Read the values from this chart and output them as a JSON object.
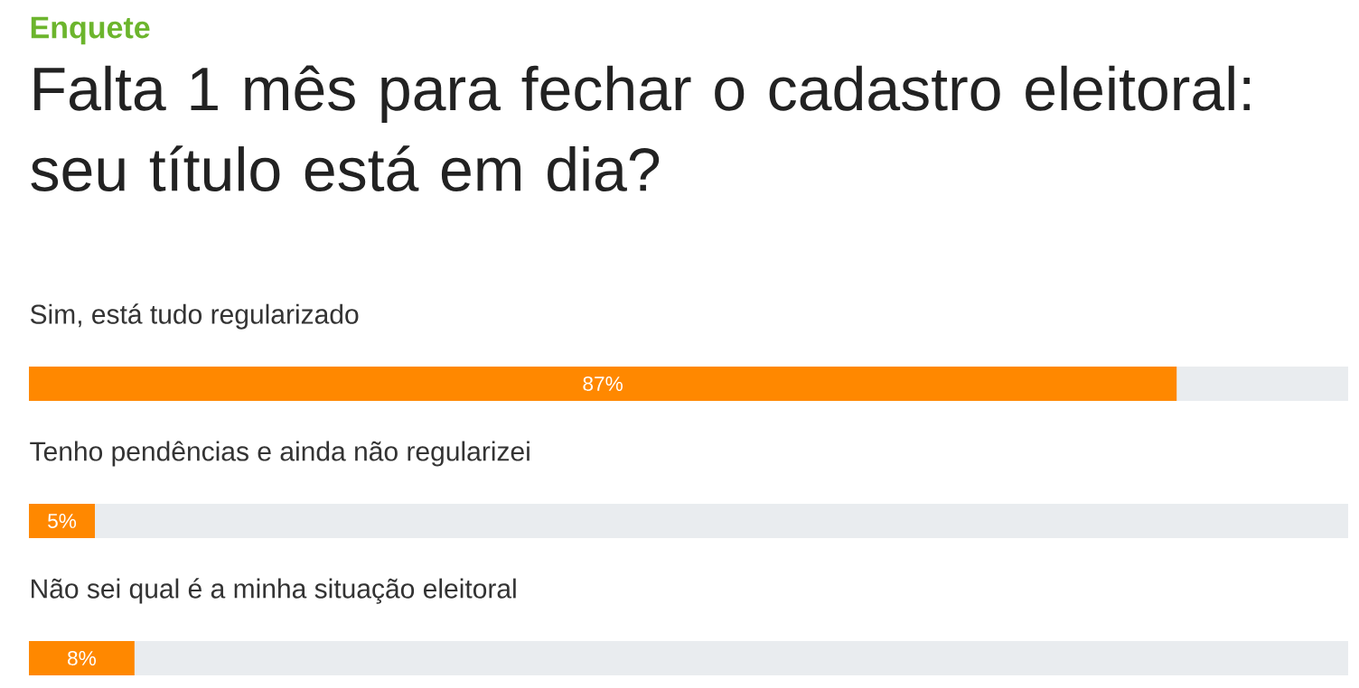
{
  "chart_data": {
    "type": "bar",
    "orientation": "horizontal",
    "subtitle": "Enquete",
    "title": "Falta 1 mês para fechar o cadastro eleitoral: seu título está em dia?",
    "categories": [
      "Sim, está tudo regularizado",
      "Tenho pendências e ainda não regularizei",
      "Não sei qual é a minha situação eleitoral"
    ],
    "values": [
      87,
      5,
      8
    ],
    "value_labels": [
      "87%",
      "5%",
      "8%"
    ],
    "color": "#ff8800",
    "xlim": [
      0,
      100
    ]
  }
}
